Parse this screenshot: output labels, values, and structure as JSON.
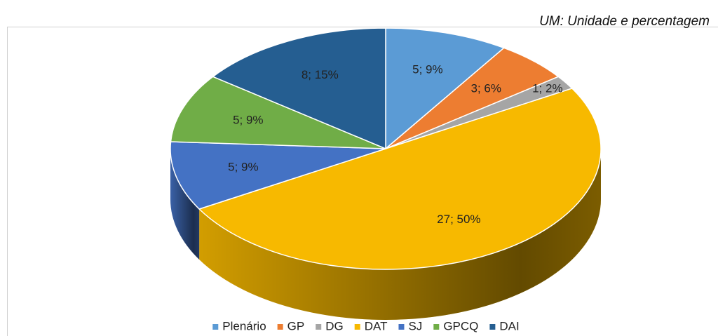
{
  "chart_data": {
    "type": "pie",
    "annotation": "UM: Unidade e percentagem",
    "categories": [
      "Plenário",
      "GP",
      "DG",
      "DAT",
      "SJ",
      "GPCQ",
      "DAI"
    ],
    "values": [
      5,
      3,
      1,
      27,
      5,
      5,
      8
    ],
    "value_labels": [
      "5; 9%",
      "3; 6%",
      "1; 2%",
      "27; 50%",
      "5; 9%",
      "5; 9%",
      "8; 15%"
    ],
    "colors": [
      "#5b9bd5",
      "#ed7d31",
      "#a5a5a5",
      "#f7b900",
      "#4472c4",
      "#70ad47",
      "#255e91"
    ],
    "legend": "bottom"
  }
}
